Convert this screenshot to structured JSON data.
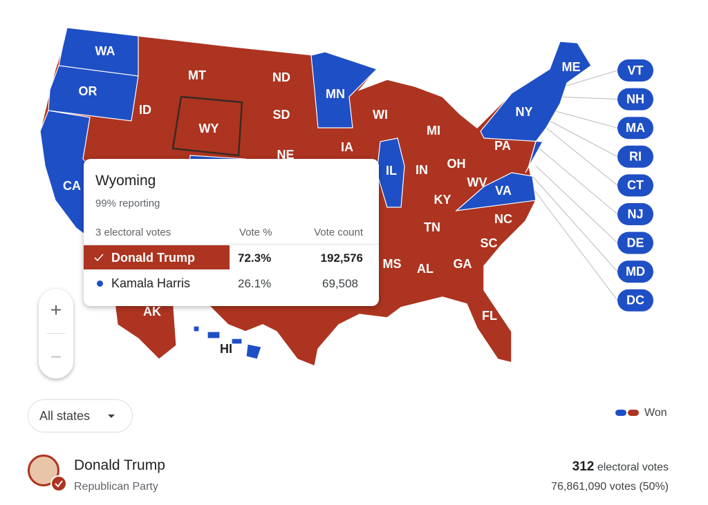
{
  "map": {
    "states": [
      {
        "label": "WA",
        "color": "#1f4fc5"
      },
      {
        "label": "OR",
        "color": "#1f4fc5"
      },
      {
        "label": "CA",
        "color": "#1f4fc5"
      },
      {
        "label": "ID",
        "color": "#ad3420"
      },
      {
        "label": "MT",
        "color": "#ad3420"
      },
      {
        "label": "WY",
        "color": "#ad3420"
      },
      {
        "label": "ND",
        "color": "#ad3420"
      },
      {
        "label": "SD",
        "color": "#ad3420"
      },
      {
        "label": "NE",
        "color": "#ad3420"
      },
      {
        "label": "MN",
        "color": "#1f4fc5"
      },
      {
        "label": "IA",
        "color": "#ad3420"
      },
      {
        "label": "WI",
        "color": "#ad3420"
      },
      {
        "label": "IL",
        "color": "#1f4fc5"
      },
      {
        "label": "MI",
        "color": "#ad3420"
      },
      {
        "label": "IN",
        "color": "#ad3420"
      },
      {
        "label": "OH",
        "color": "#ad3420"
      },
      {
        "label": "PA",
        "color": "#ad3420"
      },
      {
        "label": "NY",
        "color": "#1f4fc5"
      },
      {
        "label": "ME",
        "color": "#1f4fc5"
      },
      {
        "label": "WV",
        "color": "#ad3420"
      },
      {
        "label": "VA",
        "color": "#1f4fc5"
      },
      {
        "label": "KY",
        "color": "#ad3420"
      },
      {
        "label": "TN",
        "color": "#ad3420"
      },
      {
        "label": "NC",
        "color": "#ad3420"
      },
      {
        "label": "SC",
        "color": "#ad3420"
      },
      {
        "label": "GA",
        "color": "#ad3420"
      },
      {
        "label": "AL",
        "color": "#ad3420"
      },
      {
        "label": "MS",
        "color": "#ad3420"
      },
      {
        "label": "FL",
        "color": "#ad3420"
      },
      {
        "label": "AK",
        "color": "#ad3420"
      },
      {
        "label": "HI",
        "color": "#1f4fc5"
      }
    ],
    "callouts": [
      {
        "label": "VT",
        "color": "#1f4fc5"
      },
      {
        "label": "NH",
        "color": "#1f4fc5"
      },
      {
        "label": "MA",
        "color": "#1f4fc5"
      },
      {
        "label": "RI",
        "color": "#1f4fc5"
      },
      {
        "label": "CT",
        "color": "#1f4fc5"
      },
      {
        "label": "NJ",
        "color": "#1f4fc5"
      },
      {
        "label": "DE",
        "color": "#1f4fc5"
      },
      {
        "label": "MD",
        "color": "#1f4fc5"
      },
      {
        "label": "DC",
        "color": "#1f4fc5"
      }
    ]
  },
  "tooltip": {
    "title": "Wyoming",
    "reporting": "99% reporting",
    "electoral": "3 electoral votes",
    "headers": [
      "Vote %",
      "Vote count"
    ],
    "rows": [
      {
        "name": "Donald Trump",
        "percent": "72.3%",
        "count": "192,576"
      },
      {
        "name": "Kamala Harris",
        "percent": "26.1%",
        "count": "69,508"
      }
    ]
  },
  "zoom": {
    "in": "+",
    "out": "−"
  },
  "filter": "All states",
  "legend": {
    "colors": [
      "#1f4fc5",
      "#ad3420"
    ],
    "label": "Won"
  },
  "candidate": {
    "name": "Donald Trump",
    "party": "Republican Party",
    "electoral": "312",
    "electoral_label": "electoral votes",
    "votes": "76,861,090 votes (50%)"
  }
}
